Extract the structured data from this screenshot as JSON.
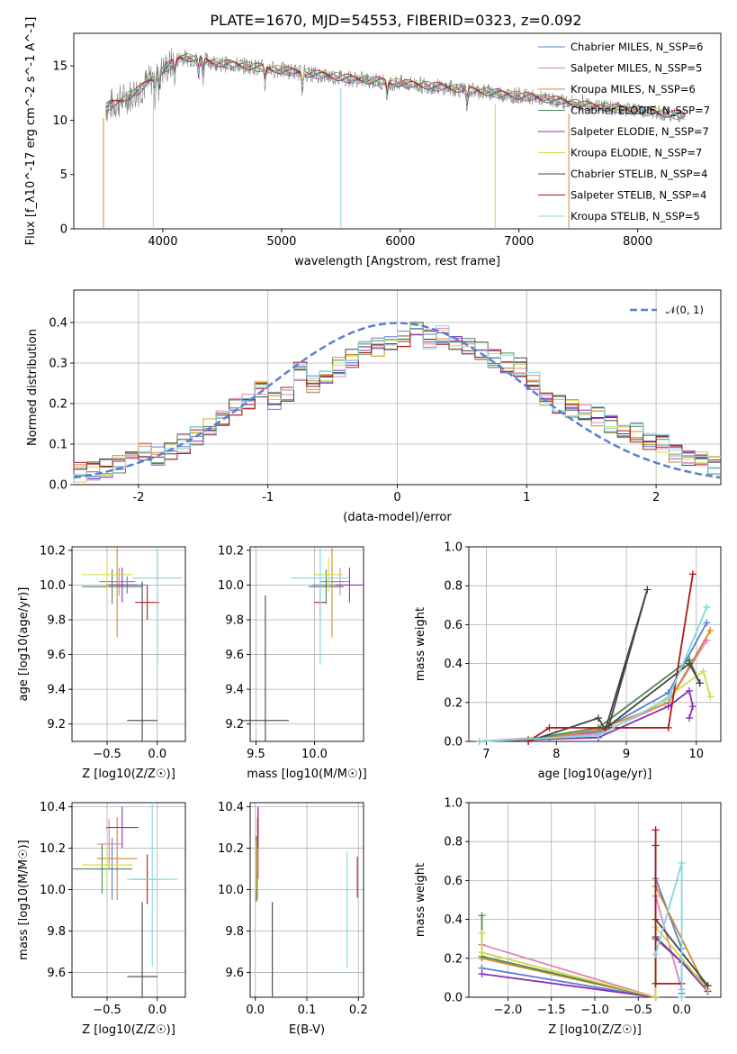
{
  "figure": {
    "title": "PLATE=1670, MJD=54553, FIBERID=0323, z=0.092"
  },
  "chart_data": [
    {
      "type": "line",
      "id": "spectrum",
      "title": "PLATE=1670, MJD=54553, FIBERID=0323, z=0.092",
      "xlabel": "wavelength [Angstrom, rest frame]",
      "ylabel": "Flux [f_λ10^-17 erg cm^-2 s^-1 A^-1]",
      "xlim": [
        3250,
        8700
      ],
      "ylim": [
        0,
        18
      ],
      "xticks": [
        4000,
        5000,
        6000,
        7000,
        8000
      ],
      "yticks": [
        0,
        5,
        10,
        15
      ],
      "grid": false,
      "legend_position": "top-right",
      "legend": [
        {
          "label": "Chabrier MILES, N_SSP=6",
          "color": "#5b7fd1"
        },
        {
          "label": "Salpeter MILES, N_SSP=5",
          "color": "#e281b8"
        },
        {
          "label": "Kroupa MILES, N_SSP=6",
          "color": "#d38a28"
        },
        {
          "label": "Chabrier ELODIE, N_SSP=7",
          "color": "#4f8a5a"
        },
        {
          "label": "Salpeter ELODIE, N_SSP=7",
          "color": "#8b2fb5"
        },
        {
          "label": "Kroupa ELODIE, N_SSP=7",
          "color": "#d5d84a"
        },
        {
          "label": "Chabrier STELIB, N_SSP=4",
          "color": "#444444"
        },
        {
          "label": "Salpeter STELIB, N_SSP=4",
          "color": "#b01818"
        },
        {
          "label": "Kroupa STELIB, N_SSP=5",
          "color": "#7fd8df"
        }
      ],
      "continuum_x": [
        3520,
        3650,
        3800,
        3950,
        4050,
        4150,
        4300,
        4500,
        4700,
        5000,
        5300,
        5600,
        6000,
        6400,
        6800,
        7200,
        7600,
        8000,
        8400
      ],
      "continuum_y": [
        11.2,
        11.8,
        12.8,
        14.2,
        15.0,
        15.8,
        15.6,
        15.2,
        15.0,
        14.6,
        14.2,
        13.8,
        13.4,
        13.0,
        12.5,
        12.0,
        11.3,
        10.9,
        10.4
      ]
    },
    {
      "type": "line",
      "id": "residuals",
      "xlabel": "(data-model)/error",
      "ylabel": "Normed distribution",
      "xlim": [
        -2.5,
        2.5
      ],
      "ylim": [
        0,
        0.48
      ],
      "xticks": [
        -2,
        -1,
        0,
        1,
        2
      ],
      "yticks": [
        0.0,
        0.1,
        0.2,
        0.3,
        0.4
      ],
      "grid": true,
      "legend_position": "top-right",
      "gaussian_label": "𝒩(0, 1)",
      "bin_edges_start": -2.5,
      "bin_width": 0.1,
      "histogram_base": [
        0.03,
        0.035,
        0.04,
        0.05,
        0.06,
        0.08,
        0.07,
        0.08,
        0.1,
        0.12,
        0.14,
        0.16,
        0.19,
        0.2,
        0.24,
        0.21,
        0.22,
        0.28,
        0.25,
        0.27,
        0.29,
        0.31,
        0.33,
        0.34,
        0.35,
        0.36,
        0.38,
        0.36,
        0.37,
        0.35,
        0.34,
        0.33,
        0.31,
        0.3,
        0.29,
        0.26,
        0.22,
        0.2,
        0.19,
        0.18,
        0.17,
        0.15,
        0.14,
        0.13,
        0.11,
        0.1,
        0.08,
        0.07,
        0.06,
        0.05
      ]
    },
    {
      "type": "scatter",
      "id": "age-vs-Z",
      "xlabel": "Z [log10(Z/Z☉)]",
      "ylabel": "age [log10(age/yr)]",
      "xlim": [
        -0.85,
        0.28
      ],
      "ylim": [
        9.1,
        10.22
      ],
      "xticks": [
        -0.5,
        0.0
      ],
      "xtick_labels": [
        "−0.5",
        "0.0"
      ],
      "yticks": [
        9.2,
        9.4,
        9.6,
        9.8,
        10.0,
        10.2
      ],
      "grid": true,
      "points": [
        {
          "x": -0.3,
          "y": 10.0,
          "xerr": 0.2,
          "yerr": 0.05,
          "color": "#5b7fd1"
        },
        {
          "x": -0.38,
          "y": 10.02,
          "xerr": 0.15,
          "yerr": 0.08,
          "color": "#e281b8"
        },
        {
          "x": -0.4,
          "y": 10.02,
          "xerr": 0.18,
          "yerr": 0.32,
          "color": "#d38a28"
        },
        {
          "x": -0.45,
          "y": 9.99,
          "xerr": 0.3,
          "yerr": 0.1,
          "color": "#4f8a5a"
        },
        {
          "x": -0.35,
          "y": 10.0,
          "xerr": 0.16,
          "yerr": 0.1,
          "color": "#8b2fb5"
        },
        {
          "x": -0.5,
          "y": 10.06,
          "xerr": 0.25,
          "yerr": 0.1,
          "color": "#d5d84a"
        },
        {
          "x": -0.15,
          "y": 9.22,
          "xerr": 0.15,
          "yerr": 0.8,
          "color": "#444444"
        },
        {
          "x": -0.1,
          "y": 9.9,
          "xerr": 0.12,
          "yerr": 0.1,
          "color": "#b01818"
        },
        {
          "x": -0.0,
          "y": 10.04,
          "xerr": 0.25,
          "yerr": 0.5,
          "color": "#7fd8df"
        }
      ]
    },
    {
      "type": "scatter",
      "id": "age-vs-mass",
      "xlabel": "mass [log10(M/M☉)]",
      "xlim": [
        9.45,
        10.42
      ],
      "ylim": [
        9.1,
        10.22
      ],
      "xticks": [
        9.5,
        10.0
      ],
      "xtick_labels": [
        "9.5",
        "10.0"
      ],
      "yticks": [
        9.2,
        9.4,
        9.6,
        9.8,
        10.0,
        10.2
      ],
      "grid": true,
      "points": [
        {
          "x": 10.1,
          "y": 10.0,
          "xerr": 0.12,
          "yerr": 0.05,
          "color": "#5b7fd1"
        },
        {
          "x": 10.22,
          "y": 10.02,
          "xerr": 0.08,
          "yerr": 0.08,
          "color": "#e281b8"
        },
        {
          "x": 10.15,
          "y": 10.02,
          "xerr": 0.1,
          "yerr": 0.32,
          "color": "#d38a28"
        },
        {
          "x": 10.1,
          "y": 9.99,
          "xerr": 0.15,
          "yerr": 0.1,
          "color": "#4f8a5a"
        },
        {
          "x": 10.3,
          "y": 10.0,
          "xerr": 0.12,
          "yerr": 0.1,
          "color": "#8b2fb5"
        },
        {
          "x": 10.12,
          "y": 10.06,
          "xerr": 0.12,
          "yerr": 0.1,
          "color": "#d5d84a"
        },
        {
          "x": 9.58,
          "y": 9.22,
          "xerr": 0.2,
          "yerr": 0.72,
          "color": "#444444"
        },
        {
          "x": 10.05,
          "y": 9.9,
          "xerr": 0.05,
          "yerr": 0.1,
          "color": "#b01818"
        },
        {
          "x": 10.05,
          "y": 10.04,
          "xerr": 0.25,
          "yerr": 0.5,
          "color": "#7fd8df"
        }
      ]
    },
    {
      "type": "line",
      "id": "weight-vs-age",
      "xlabel": "age [log10(age/yr)]",
      "ylabel": "mass weight",
      "xlim": [
        6.75,
        10.35
      ],
      "ylim": [
        0,
        1.0
      ],
      "xticks": [
        7,
        8,
        9,
        10
      ],
      "yticks": [
        0.0,
        0.2,
        0.4,
        0.6,
        0.8,
        1.0
      ],
      "grid": true,
      "series": [
        {
          "color": "#5b7fd1",
          "x": [
            6.9,
            7.9,
            8.6,
            9.6,
            10.15
          ],
          "y": [
            0.0,
            0.02,
            0.05,
            0.25,
            0.61
          ]
        },
        {
          "color": "#e281b8",
          "x": [
            6.9,
            8.6,
            9.6,
            10.15
          ],
          "y": [
            0.0,
            0.04,
            0.2,
            0.52
          ]
        },
        {
          "color": "#d38a28",
          "x": [
            6.9,
            7.9,
            8.6,
            9.6,
            10.2
          ],
          "y": [
            0.0,
            0.02,
            0.06,
            0.2,
            0.57
          ]
        },
        {
          "color": "#4f8a5a",
          "x": [
            6.9,
            7.6,
            8.6,
            9.9,
            10.05
          ],
          "y": [
            0.0,
            0.01,
            0.07,
            0.42,
            0.3
          ]
        },
        {
          "color": "#8b2fb5",
          "x": [
            6.9,
            8.6,
            9.6,
            9.9,
            9.95,
            9.9
          ],
          "y": [
            0.0,
            0.02,
            0.18,
            0.26,
            0.18,
            0.12
          ]
        },
        {
          "color": "#d5d84a",
          "x": [
            6.9,
            8.6,
            9.4,
            10.1,
            10.2
          ],
          "y": [
            0.0,
            0.03,
            0.18,
            0.36,
            0.23
          ]
        },
        {
          "color": "#444444",
          "x": [
            7.6,
            8.6,
            8.7,
            9.3,
            8.75,
            9.9,
            10.05
          ],
          "y": [
            0.0,
            0.12,
            0.06,
            0.78,
            0.08,
            0.4,
            0.3
          ]
        },
        {
          "color": "#b01818",
          "x": [
            7.6,
            7.9,
            9.6,
            9.95
          ],
          "y": [
            0.0,
            0.07,
            0.07,
            0.86
          ]
        },
        {
          "color": "#7fd8df",
          "x": [
            6.9,
            8.6,
            9.6,
            10.15
          ],
          "y": [
            0.0,
            0.03,
            0.22,
            0.69
          ]
        }
      ]
    },
    {
      "type": "scatter",
      "id": "mass-vs-Z",
      "xlabel": "Z [log10(Z/Z☉)]",
      "ylabel": "mass [log10(M/M☉)]",
      "xlim": [
        -0.85,
        0.28
      ],
      "ylim": [
        9.48,
        10.42
      ],
      "xticks": [
        -0.5,
        0.0
      ],
      "xtick_labels": [
        "−0.5",
        "0.0"
      ],
      "yticks": [
        9.6,
        9.8,
        10.0,
        10.2,
        10.4
      ],
      "grid": true,
      "points": [
        {
          "x": -0.45,
          "y": 10.1,
          "xerr": 0.2,
          "yerr": 0.15,
          "color": "#5b7fd1"
        },
        {
          "x": -0.48,
          "y": 10.22,
          "xerr": 0.12,
          "yerr": 0.12,
          "color": "#e281b8"
        },
        {
          "x": -0.4,
          "y": 10.15,
          "xerr": 0.2,
          "yerr": 0.2,
          "color": "#d38a28"
        },
        {
          "x": -0.55,
          "y": 10.1,
          "xerr": 0.3,
          "yerr": 0.12,
          "color": "#4f8a5a"
        },
        {
          "x": -0.35,
          "y": 10.3,
          "xerr": 0.16,
          "yerr": 0.1,
          "color": "#8b2fb5"
        },
        {
          "x": -0.5,
          "y": 10.12,
          "xerr": 0.25,
          "yerr": 0.12,
          "color": "#d5d84a"
        },
        {
          "x": -0.15,
          "y": 9.58,
          "xerr": 0.15,
          "yerr": 0.36,
          "color": "#444444"
        },
        {
          "x": -0.1,
          "y": 10.05,
          "xerr": 0.15,
          "yerr": 0.12,
          "color": "#b01818"
        },
        {
          "x": -0.05,
          "y": 10.05,
          "xerr": 0.25,
          "yerr": 0.42,
          "color": "#7fd8df"
        }
      ]
    },
    {
      "type": "scatter",
      "id": "mass-vs-EBV",
      "xlabel": "E(B-V)",
      "xlim": [
        -0.01,
        0.21
      ],
      "ylim": [
        9.48,
        10.42
      ],
      "xticks": [
        0.0,
        0.1,
        0.2
      ],
      "xtick_labels": [
        "0.0",
        "0.1",
        "0.2"
      ],
      "yticks": [
        9.6,
        9.8,
        10.0,
        10.2,
        10.4
      ],
      "grid": true,
      "points": [
        {
          "x": 0.003,
          "y": 10.1,
          "xerr": 0.0,
          "yerr": 0.15,
          "color": "#5b7fd1"
        },
        {
          "x": 0.006,
          "y": 10.22,
          "xerr": 0.0,
          "yerr": 0.17,
          "color": "#e281b8"
        },
        {
          "x": 0.004,
          "y": 10.15,
          "xerr": 0.0,
          "yerr": 0.2,
          "color": "#d38a28"
        },
        {
          "x": 0.002,
          "y": 10.1,
          "xerr": 0.0,
          "yerr": 0.16,
          "color": "#4f8a5a"
        },
        {
          "x": 0.005,
          "y": 10.3,
          "xerr": 0.0,
          "yerr": 0.1,
          "color": "#8b2fb5"
        },
        {
          "x": 0.001,
          "y": 10.12,
          "xerr": 0.0,
          "yerr": 0.12,
          "color": "#d5d84a"
        },
        {
          "x": 0.033,
          "y": 9.6,
          "xerr": 0.0,
          "yerr": 0.34,
          "color": "#444444"
        },
        {
          "x": 0.198,
          "y": 10.06,
          "xerr": 0.0,
          "yerr": 0.1,
          "color": "#b01818"
        },
        {
          "x": 0.178,
          "y": 9.9,
          "xerr": 0.0,
          "yerr": 0.28,
          "color": "#7fd8df"
        }
      ]
    },
    {
      "type": "line",
      "id": "weight-vs-Z",
      "xlabel": "Z [log10(Z/Z☉)]",
      "ylabel": "mass weight",
      "xlim": [
        -2.45,
        0.45
      ],
      "ylim": [
        0,
        1.0
      ],
      "xticks": [
        -2.0,
        -1.5,
        -1.0,
        -0.5,
        0.0
      ],
      "xtick_labels": [
        "−2.0",
        "−1.5",
        "−1.0",
        "−0.5",
        "0.0"
      ],
      "yticks": [
        0.0,
        0.2,
        0.4,
        0.6,
        0.8,
        1.0
      ],
      "grid": true,
      "series": [
        {
          "color": "#5b7fd1",
          "x": [
            -2.3,
            -0.3,
            -0.3,
            0.0,
            0.0
          ],
          "y": [
            0.15,
            0.0,
            0.61,
            0.25,
            0.02
          ]
        },
        {
          "color": "#e281b8",
          "x": [
            -2.3,
            -0.3,
            -0.3,
            0.0
          ],
          "y": [
            0.27,
            0.0,
            0.52,
            0.04
          ]
        },
        {
          "color": "#d38a28",
          "x": [
            -2.3,
            -0.3,
            -0.3,
            0.3
          ],
          "y": [
            0.2,
            0.0,
            0.57,
            0.03
          ]
        },
        {
          "color": "#4f8a5a",
          "x": [
            -2.3,
            -2.3,
            -0.3,
            -0.3,
            0.3
          ],
          "y": [
            0.42,
            0.21,
            0.0,
            0.3,
            0.06
          ]
        },
        {
          "color": "#8b2fb5",
          "x": [
            -2.3,
            -0.3,
            -0.3,
            0.0,
            0.3
          ],
          "y": [
            0.12,
            0.0,
            0.31,
            0.18,
            0.03
          ]
        },
        {
          "color": "#d5d84a",
          "x": [
            -2.3,
            -2.3,
            -0.3,
            -0.3,
            0.3
          ],
          "y": [
            0.33,
            0.23,
            0.0,
            0.36,
            0.04
          ]
        },
        {
          "color": "#444444",
          "x": [
            -0.3,
            -0.3,
            0.3
          ],
          "y": [
            0.78,
            0.4,
            0.06
          ]
        },
        {
          "color": "#b01818",
          "x": [
            -0.3,
            -0.3,
            -0.3,
            0.0
          ],
          "y": [
            0.86,
            0.07,
            0.07,
            0.07
          ]
        },
        {
          "color": "#7fd8df",
          "x": [
            -0.3,
            0.0,
            0.0
          ],
          "y": [
            0.22,
            0.69,
            0.0
          ]
        }
      ]
    }
  ]
}
